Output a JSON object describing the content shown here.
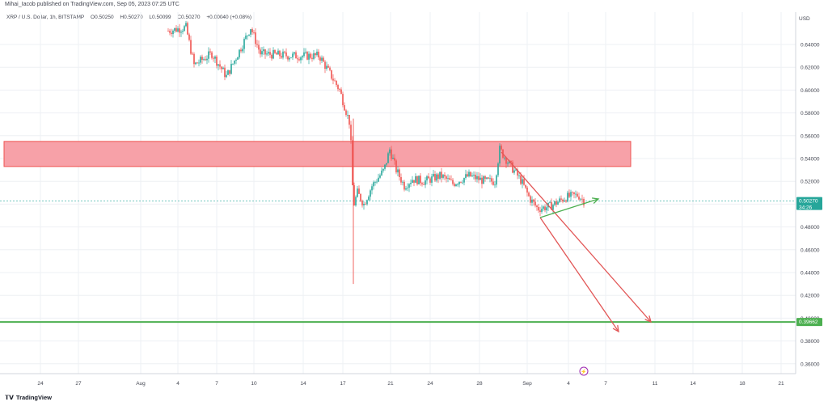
{
  "header": {
    "published_text": "Mihai_Iacob published on TradingView.com, Sep 05, 2023 07:25 UTC",
    "symbol_text": "XRP / U.S. Dollar, 1h, BITSTAMP",
    "ohlc": [
      "O0.50250",
      "H0.50270",
      "L0.50099",
      "C0.50270",
      "+0.00040 (+0.08%)"
    ]
  },
  "axis": {
    "currency": "USD",
    "y_ticks": [
      "0.64000",
      "0.62000",
      "0.60000",
      "0.58000",
      "0.56000",
      "0.54000",
      "0.52000",
      "0.50000",
      "0.48000",
      "0.46000",
      "0.44000",
      "0.42000",
      "0.40000",
      "0.38000",
      "0.36000"
    ],
    "x_ticks": [
      "24",
      "27",
      "Aug",
      "4",
      "7",
      "10",
      "14",
      "17",
      "21",
      "24",
      "28",
      "Sep",
      "4",
      "7",
      "11",
      "14",
      "18",
      "21"
    ]
  },
  "price_labels": {
    "current_price": "0.50270",
    "countdown": "34:26",
    "support_level": "0.39662"
  },
  "footer": {
    "logo_text": "TradingView"
  },
  "chart_data": {
    "type": "candlestick",
    "symbol": "XRP / U.S. Dollar",
    "interval": "1h",
    "exchange": "BITSTAMP",
    "ylim": [
      0.35,
      0.66
    ],
    "x": [
      "Aug 4",
      "Aug 5",
      "Aug 7",
      "Aug 9",
      "Aug 10",
      "Aug 12",
      "Aug 14",
      "Aug 16",
      "Aug 17",
      "Aug 17b",
      "Aug 18",
      "Aug 20",
      "Aug 21",
      "Aug 22",
      "Aug 24",
      "Aug 26",
      "Aug 28",
      "Aug 30",
      "Aug 30b",
      "Sep 1",
      "Sep 2",
      "Sep 3",
      "Sep 4",
      "Sep 5"
    ],
    "close": [
      0.652,
      0.625,
      0.632,
      0.618,
      0.655,
      0.632,
      0.63,
      0.625,
      0.6,
      0.56,
      0.495,
      0.516,
      0.548,
      0.516,
      0.525,
      0.522,
      0.528,
      0.516,
      0.548,
      0.516,
      0.496,
      0.502,
      0.508,
      0.503
    ],
    "resistance_zone": [
      0.533,
      0.555
    ],
    "support_line": 0.39662,
    "current_price": 0.5027,
    "wick_low": 0.43,
    "colors": {
      "up": "#26a69a",
      "down": "#ef5350",
      "zone": "#f7a1a8",
      "support": "#4caf50",
      "arrow": "#e25656",
      "channel": "#4caf50",
      "last_price": "#26a69a"
    }
  }
}
